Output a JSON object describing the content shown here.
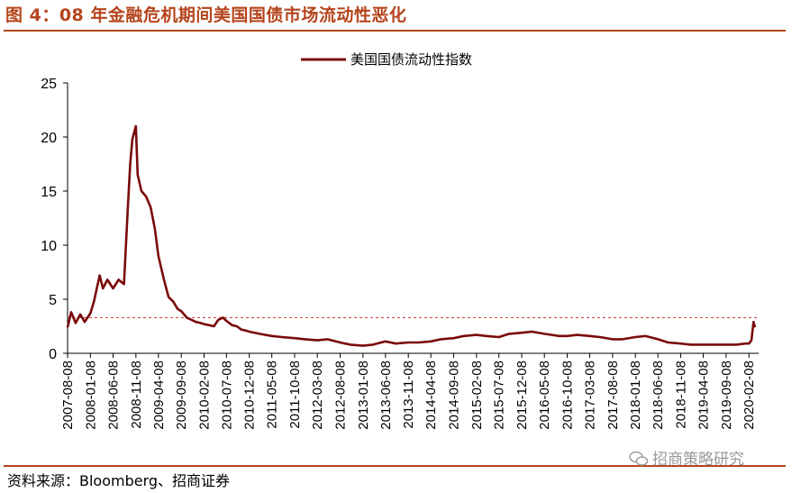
{
  "header": {
    "title": "图 4：08 年金融危机期间美国国债市场流动性恶化"
  },
  "footer": {
    "source": "资料来源：Bloomberg、招商证券",
    "watermark": "招商策略研究"
  },
  "colors": {
    "accent": "#b5441c",
    "series": "#7a0a0a",
    "reference_line": "#c0392b"
  },
  "chart_data": {
    "type": "line",
    "title": "",
    "xlabel": "",
    "ylabel": "",
    "ylim": [
      0,
      25
    ],
    "yticks": [
      0,
      5,
      10,
      15,
      20,
      25
    ],
    "grid": false,
    "legend_position": "top-center",
    "x_tick_labels": [
      "2007-08-08",
      "2008-01-08",
      "2008-06-08",
      "2008-11-08",
      "2009-04-08",
      "2009-09-08",
      "2010-02-08",
      "2010-07-08",
      "2010-12-08",
      "2011-05-08",
      "2011-10-08",
      "2012-03-08",
      "2012-08-08",
      "2013-01-08",
      "2013-06-08",
      "2013-11-08",
      "2014-04-08",
      "2014-09-08",
      "2015-02-08",
      "2015-07-08",
      "2015-12-08",
      "2016-05-08",
      "2016-10-08",
      "2017-03-08",
      "2017-08-08",
      "2018-01-08",
      "2018-06-08",
      "2018-11-08",
      "2019-04-08",
      "2019-09-08",
      "2020-02-08"
    ],
    "reference_line": {
      "y": 3.3,
      "style": "dashed"
    },
    "series": [
      {
        "name": "美国国债流动性指数",
        "points": [
          [
            "2007-08-08",
            2.4
          ],
          [
            "2007-09-01",
            3.8
          ],
          [
            "2007-10-01",
            2.8
          ],
          [
            "2007-11-01",
            3.6
          ],
          [
            "2007-12-01",
            2.9
          ],
          [
            "2008-01-08",
            3.7
          ],
          [
            "2008-02-01",
            4.8
          ],
          [
            "2008-03-10",
            7.2
          ],
          [
            "2008-04-01",
            6.0
          ],
          [
            "2008-05-01",
            6.8
          ],
          [
            "2008-06-08",
            6.0
          ],
          [
            "2008-07-15",
            6.8
          ],
          [
            "2008-08-20",
            6.4
          ],
          [
            "2008-09-15",
            13.5
          ],
          [
            "2008-10-01",
            17.5
          ],
          [
            "2008-10-15",
            19.8
          ],
          [
            "2008-11-08",
            21.0
          ],
          [
            "2008-11-20",
            16.5
          ],
          [
            "2008-12-15",
            15.0
          ],
          [
            "2009-01-15",
            14.5
          ],
          [
            "2009-02-15",
            13.5
          ],
          [
            "2009-03-15",
            11.5
          ],
          [
            "2009-04-08",
            9.0
          ],
          [
            "2009-05-15",
            6.8
          ],
          [
            "2009-06-15",
            5.2
          ],
          [
            "2009-07-15",
            4.8
          ],
          [
            "2009-08-15",
            4.1
          ],
          [
            "2009-09-08",
            3.9
          ],
          [
            "2009-10-15",
            3.3
          ],
          [
            "2009-11-15",
            3.1
          ],
          [
            "2009-12-15",
            2.9
          ],
          [
            "2010-01-15",
            2.8
          ],
          [
            "2010-02-08",
            2.7
          ],
          [
            "2010-03-15",
            2.6
          ],
          [
            "2010-04-15",
            2.5
          ],
          [
            "2010-05-15",
            3.1
          ],
          [
            "2010-06-15",
            3.3
          ],
          [
            "2010-07-08",
            3.0
          ],
          [
            "2010-08-15",
            2.6
          ],
          [
            "2010-09-15",
            2.5
          ],
          [
            "2010-10-15",
            2.2
          ],
          [
            "2010-11-15",
            2.1
          ],
          [
            "2010-12-08",
            2.0
          ],
          [
            "2011-02-15",
            1.8
          ],
          [
            "2011-05-08",
            1.6
          ],
          [
            "2011-07-15",
            1.5
          ],
          [
            "2011-10-08",
            1.4
          ],
          [
            "2011-12-15",
            1.3
          ],
          [
            "2012-03-08",
            1.2
          ],
          [
            "2012-05-15",
            1.3
          ],
          [
            "2012-08-08",
            1.0
          ],
          [
            "2012-10-15",
            0.8
          ],
          [
            "2013-01-08",
            0.7
          ],
          [
            "2013-03-15",
            0.8
          ],
          [
            "2013-06-08",
            1.1
          ],
          [
            "2013-08-15",
            0.9
          ],
          [
            "2013-11-08",
            1.0
          ],
          [
            "2014-01-15",
            1.0
          ],
          [
            "2014-04-08",
            1.1
          ],
          [
            "2014-06-15",
            1.3
          ],
          [
            "2014-09-08",
            1.4
          ],
          [
            "2014-11-15",
            1.6
          ],
          [
            "2015-02-08",
            1.7
          ],
          [
            "2015-04-15",
            1.6
          ],
          [
            "2015-07-08",
            1.5
          ],
          [
            "2015-09-15",
            1.8
          ],
          [
            "2015-12-08",
            1.9
          ],
          [
            "2016-02-15",
            2.0
          ],
          [
            "2016-05-08",
            1.8
          ],
          [
            "2016-08-15",
            1.6
          ],
          [
            "2016-10-08",
            1.6
          ],
          [
            "2016-12-15",
            1.7
          ],
          [
            "2017-03-08",
            1.6
          ],
          [
            "2017-05-15",
            1.5
          ],
          [
            "2017-08-08",
            1.3
          ],
          [
            "2017-10-15",
            1.3
          ],
          [
            "2018-01-08",
            1.5
          ],
          [
            "2018-03-15",
            1.6
          ],
          [
            "2018-06-08",
            1.3
          ],
          [
            "2018-08-15",
            1.0
          ],
          [
            "2018-11-08",
            0.9
          ],
          [
            "2019-01-15",
            0.8
          ],
          [
            "2019-04-08",
            0.8
          ],
          [
            "2019-06-15",
            0.8
          ],
          [
            "2019-09-08",
            0.8
          ],
          [
            "2019-11-15",
            0.8
          ],
          [
            "2020-01-15",
            0.9
          ],
          [
            "2020-02-08",
            0.9
          ],
          [
            "2020-02-25",
            1.2
          ],
          [
            "2020-03-10",
            2.9
          ],
          [
            "2020-03-20",
            2.4
          ]
        ]
      }
    ]
  }
}
